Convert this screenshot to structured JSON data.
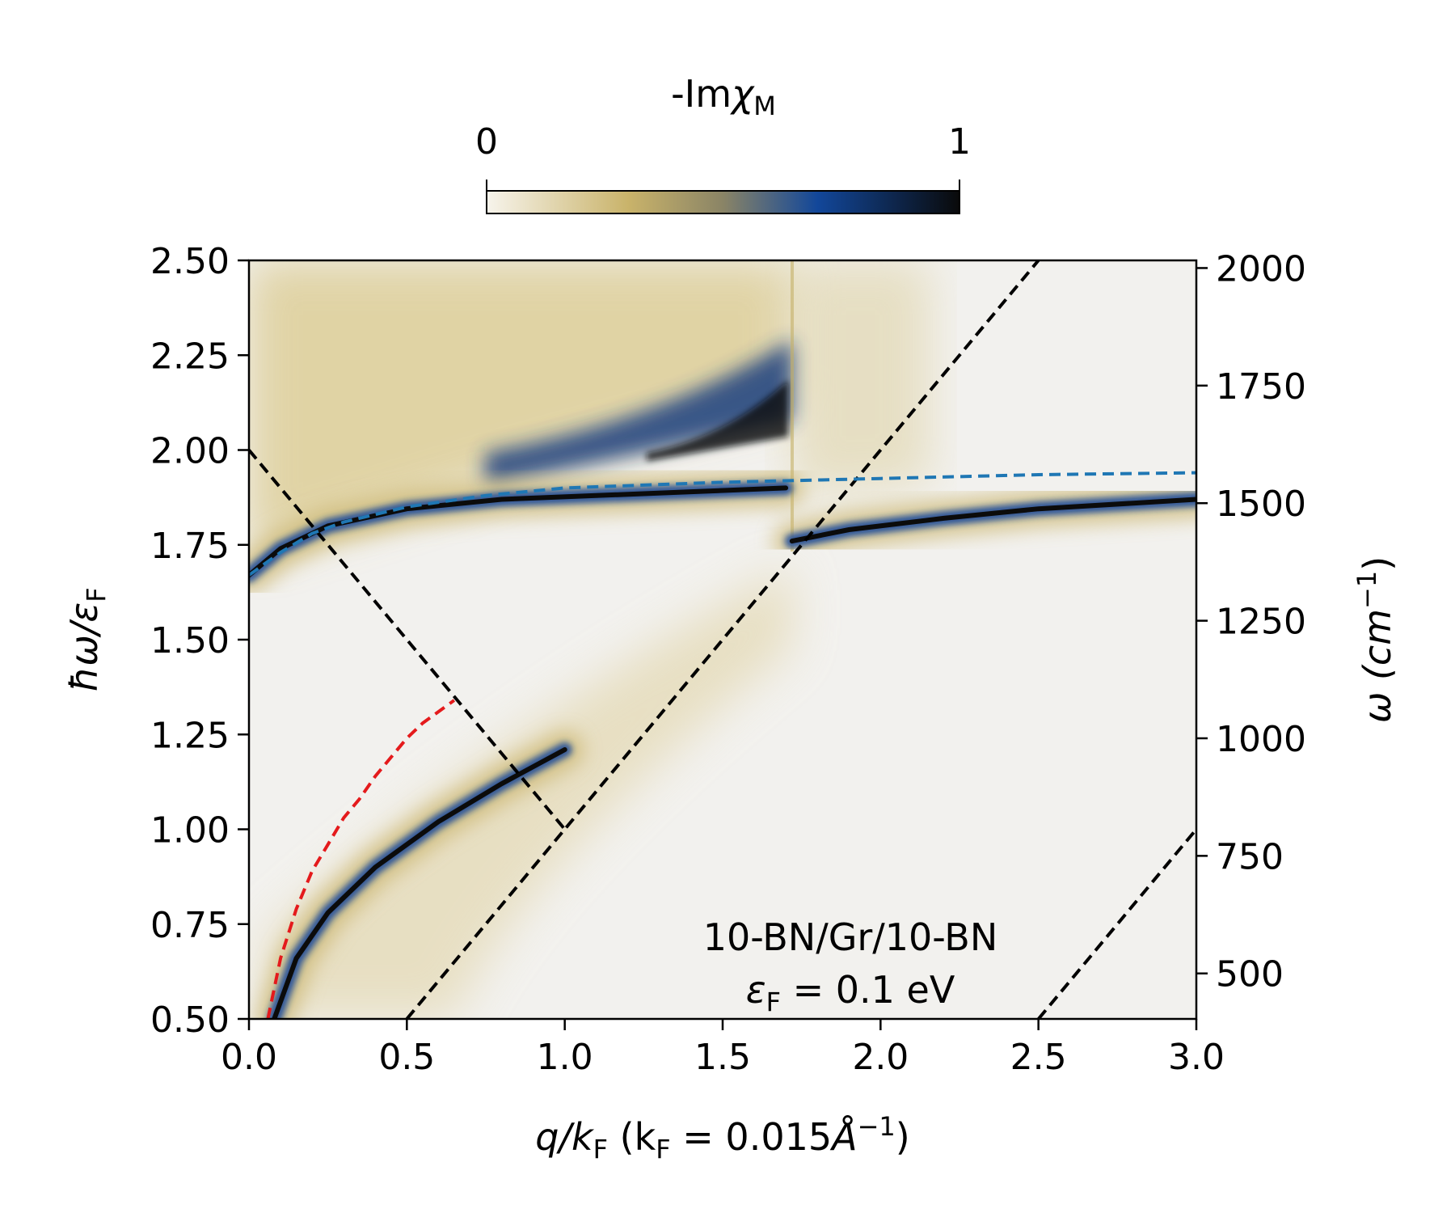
{
  "chart_data": {
    "type": "heatmap",
    "colorbar": {
      "title_prefix": "-Im",
      "title_symbol": "χ",
      "title_subscript": "M",
      "min_label": "0",
      "max_label": "1",
      "range": [
        0,
        1
      ],
      "colors": [
        "#f7f4ec",
        "#c9b36a",
        "#12479a",
        "#0a0a0a"
      ]
    },
    "x_axis": {
      "label_q": "q",
      "label_mid": "/k",
      "label_sub": "F",
      "label_paren": " (k",
      "label_sub2": "F",
      "label_eq": " = 0.015",
      "label_unit": "Å",
      "label_sup": "−1",
      "label_close": ")",
      "range": [
        0.0,
        3.0
      ],
      "ticks": [
        "0.0",
        "0.5",
        "1.0",
        "1.5",
        "2.0",
        "2.5",
        "3.0"
      ]
    },
    "y_axis_left": {
      "label_main": "ħω/ε",
      "label_sub": "F",
      "range": [
        0.5,
        2.5
      ],
      "ticks": [
        "0.50",
        "0.75",
        "1.00",
        "1.25",
        "1.50",
        "1.75",
        "2.00",
        "2.25",
        "2.50"
      ]
    },
    "y_axis_right": {
      "label_main": "ω (cm",
      "label_sup": "−1",
      "label_close": ")",
      "cm_per_unit": 806.5,
      "ticks": [
        "500",
        "750",
        "1000",
        "1250",
        "1500",
        "1750",
        "2000"
      ]
    },
    "annotation": {
      "line1": "10-BN/Gr/10-BN",
      "line2_main": "ε",
      "line2_sub": "F",
      "line2_rest": " = 0.1 eV"
    },
    "dashed_lines": [
      {
        "name": "intraband-edge",
        "color": "#000000",
        "x": [
          0.5,
          2.5
        ],
        "y": [
          0.5,
          2.5
        ]
      },
      {
        "name": "interband-edge",
        "color": "#000000",
        "x": [
          0.0,
          1.0
        ],
        "y": [
          2.0,
          1.0
        ]
      },
      {
        "name": "second-edge",
        "color": "#000000",
        "x": [
          2.5,
          3.0
        ],
        "y": [
          0.5,
          1.0
        ]
      },
      {
        "name": "phonon-polariton-fit",
        "color": "#1f77b4",
        "x": [
          0.0,
          0.1,
          0.2,
          0.3,
          0.5,
          0.75,
          1.0,
          1.5,
          2.0,
          2.5,
          3.0
        ],
        "y": [
          1.67,
          1.73,
          1.78,
          1.81,
          1.85,
          1.88,
          1.9,
          1.915,
          1.925,
          1.935,
          1.94
        ]
      },
      {
        "name": "plasmon-estimate",
        "color": "#e41a1c",
        "x": [
          0.06,
          0.1,
          0.15,
          0.2,
          0.25,
          0.3,
          0.35,
          0.4,
          0.45,
          0.5,
          0.55,
          0.6,
          0.65
        ],
        "y": [
          0.5,
          0.66,
          0.79,
          0.89,
          0.96,
          1.03,
          1.08,
          1.14,
          1.19,
          1.24,
          1.28,
          1.31,
          1.34
        ]
      }
    ],
    "intensity_features": [
      {
        "name": "lower-plasmon-branch",
        "q": [
          0.08,
          0.15,
          0.25,
          0.4,
          0.6,
          0.8,
          1.0
        ],
        "w": [
          0.5,
          0.66,
          0.78,
          0.9,
          1.02,
          1.12,
          1.21
        ]
      },
      {
        "name": "upper-branch",
        "q": [
          0.0,
          0.1,
          0.25,
          0.5,
          0.8,
          1.1,
          1.4,
          1.7
        ],
        "w": [
          1.67,
          1.74,
          1.8,
          1.845,
          1.87,
          1.88,
          1.89,
          1.9
        ]
      },
      {
        "name": "upper-branch-right",
        "q": [
          1.72,
          1.9,
          2.2,
          2.5,
          2.8,
          3.0
        ],
        "w": [
          1.76,
          1.79,
          1.82,
          1.845,
          1.86,
          1.87
        ]
      }
    ]
  }
}
